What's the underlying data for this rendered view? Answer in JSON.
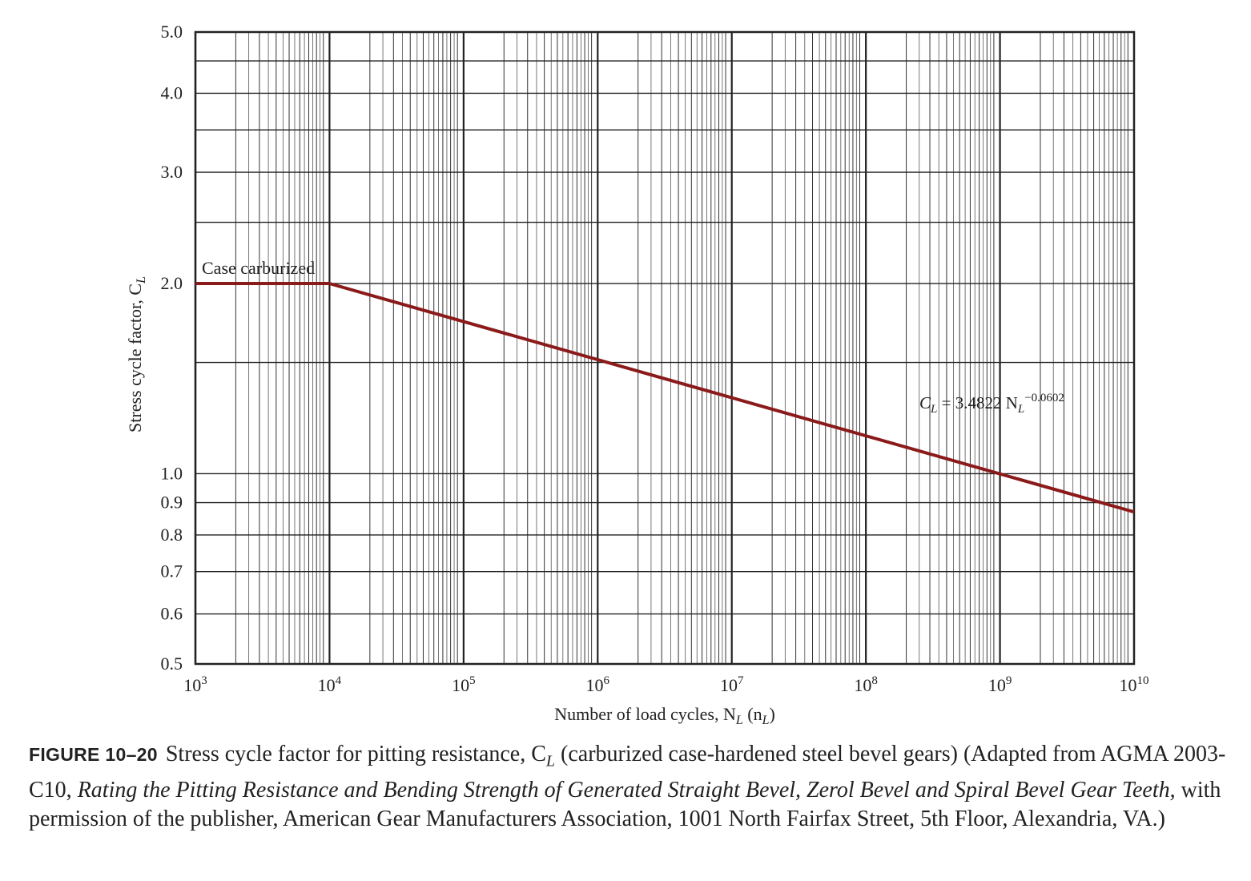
{
  "chart_data": {
    "type": "line",
    "xscale": "log",
    "yscale": "log",
    "xlim": [
      1000,
      10000000000
    ],
    "ylim": [
      0.5,
      5.0
    ],
    "xlabel": "Number of load cycles, N",
    "xlabel_sub": "L",
    "xlabel_paren_open": " (n",
    "xlabel_paren_sub": "L",
    "xlabel_paren_close": ")",
    "ylabel": "Stress cycle factor, C",
    "ylabel_sub": "L",
    "x_ticks": [
      {
        "value": 1000,
        "base": "10",
        "exp": "3"
      },
      {
        "value": 10000,
        "base": "10",
        "exp": "4"
      },
      {
        "value": 100000,
        "base": "10",
        "exp": "5"
      },
      {
        "value": 1000000,
        "base": "10",
        "exp": "6"
      },
      {
        "value": 10000000,
        "base": "10",
        "exp": "7"
      },
      {
        "value": 100000000,
        "base": "10",
        "exp": "8"
      },
      {
        "value": 1000000000,
        "base": "10",
        "exp": "9"
      },
      {
        "value": 10000000000,
        "base": "10",
        "exp": "10"
      }
    ],
    "y_ticks": [
      {
        "value": 0.5,
        "label": "0.5"
      },
      {
        "value": 0.6,
        "label": "0.6"
      },
      {
        "value": 0.7,
        "label": "0.7"
      },
      {
        "value": 0.8,
        "label": "0.8"
      },
      {
        "value": 0.9,
        "label": "0.9"
      },
      {
        "value": 1.0,
        "label": "1.0"
      },
      {
        "value": 2.0,
        "label": "2.0"
      },
      {
        "value": 3.0,
        "label": "3.0"
      },
      {
        "value": 4.0,
        "label": "4.0"
      },
      {
        "value": 5.0,
        "label": "5.0"
      }
    ],
    "y_gridlines": [
      0.5,
      0.6,
      0.7,
      0.8,
      0.9,
      1.0,
      1.5,
      2.0,
      2.5,
      3.0,
      3.5,
      4.0,
      4.5,
      5.0
    ],
    "grid": true,
    "series": [
      {
        "color": "#8b1a1a",
        "points": [
          [
            1000,
            2.0
          ],
          [
            10000,
            2.0
          ],
          [
            10000000000,
            0.87
          ]
        ]
      }
    ],
    "annotations": {
      "case_label": {
        "text": "Case carburized",
        "x": 1000,
        "y": 2.0
      },
      "equation": {
        "c": "C",
        "c_sub": "L",
        "middle": " = 3.4822 N",
        "n_sub": "L",
        "exp": "−0.0602"
      }
    }
  },
  "caption": {
    "label": "FIGURE 10–20",
    "part1": "Stress cycle factor for pitting resistance, C",
    "part1_sub": "L",
    "part2": " (carburized case-hardened steel bevel gears) (Adapted from AGMA 2003-C10, ",
    "title_italic": "Rating the Pitting Resistance and Bending Strength of Generated Straight Bevel, Zerol Bevel and Spiral Bevel Gear Teeth,",
    "part3": " with permission of the publisher, American Gear Manufacturers Association, 1001 North Fairfax Street, 5th Floor, Alexandria, VA.)"
  }
}
